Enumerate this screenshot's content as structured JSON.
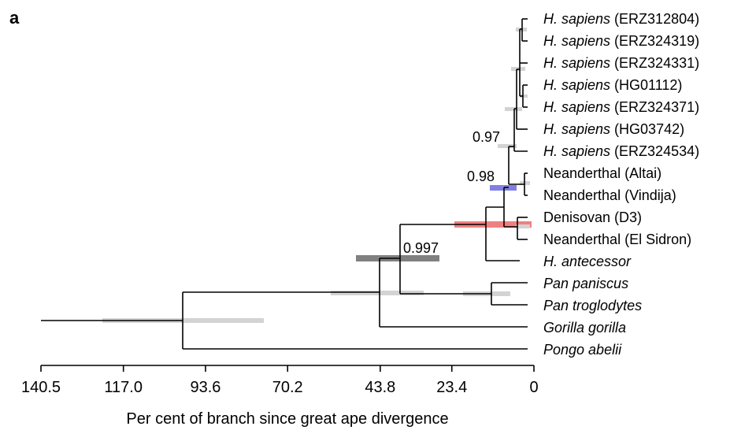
{
  "panel_label": "a",
  "axis": {
    "title": "Per cent of branch since great ape divergence",
    "ticks": [
      "140.5",
      "117.0",
      "93.6",
      "70.2",
      "43.8",
      "23.4",
      "0"
    ],
    "tick_values": [
      140.5,
      117.0,
      93.6,
      70.2,
      43.8,
      23.4,
      0
    ],
    "range": [
      140.5,
      0
    ]
  },
  "taxa": [
    {
      "id": "hs1",
      "genus": "H. sapiens",
      "suffix": " (ERZ312804)",
      "italic_genus": true
    },
    {
      "id": "hs2",
      "genus": "H. sapiens",
      "suffix": " (ERZ324319)",
      "italic_genus": true
    },
    {
      "id": "hs3",
      "genus": "H. sapiens",
      "suffix": " (ERZ324331)",
      "italic_genus": true
    },
    {
      "id": "hs4",
      "genus": "H. sapiens",
      "suffix": " (HG01112)",
      "italic_genus": true
    },
    {
      "id": "hs5",
      "genus": "H. sapiens",
      "suffix": " (ERZ324371)",
      "italic_genus": true
    },
    {
      "id": "hs6",
      "genus": "H. sapiens",
      "suffix": " (HG03742)",
      "italic_genus": true
    },
    {
      "id": "hs7",
      "genus": "H. sapiens",
      "suffix": " (ERZ324534)",
      "italic_genus": true
    },
    {
      "id": "nalt",
      "genus": "",
      "suffix": "Neanderthal (Altai)",
      "italic_genus": false
    },
    {
      "id": "nvin",
      "genus": "",
      "suffix": "Neanderthal (Vindija)",
      "italic_genus": false
    },
    {
      "id": "den",
      "genus": "",
      "suffix": "Denisovan (D3)",
      "italic_genus": false
    },
    {
      "id": "nels",
      "genus": "",
      "suffix": "Neanderthal (El Sidron)",
      "italic_genus": false
    },
    {
      "id": "hant",
      "genus": "H. antecessor",
      "suffix": "",
      "italic_genus": true
    },
    {
      "id": "ppan",
      "genus": "Pan paniscus",
      "suffix": "",
      "italic_genus": true
    },
    {
      "id": "ptro",
      "genus": "Pan troglodytes",
      "suffix": "",
      "italic_genus": true
    },
    {
      "id": "ggor",
      "genus": "Gorilla gorilla",
      "suffix": "",
      "italic_genus": true
    },
    {
      "id": "pabe",
      "genus": "Pongo abelii",
      "suffix": "",
      "italic_genus": true
    }
  ],
  "support_values": [
    "0.97",
    "0.98",
    "0.997"
  ],
  "colors": {
    "hpd_grey": "#d3d3d3",
    "hpd_dark": "#808080",
    "hpd_blue": "#7f7fe6",
    "hpd_red": "#f08080",
    "branch": "#000000"
  }
}
